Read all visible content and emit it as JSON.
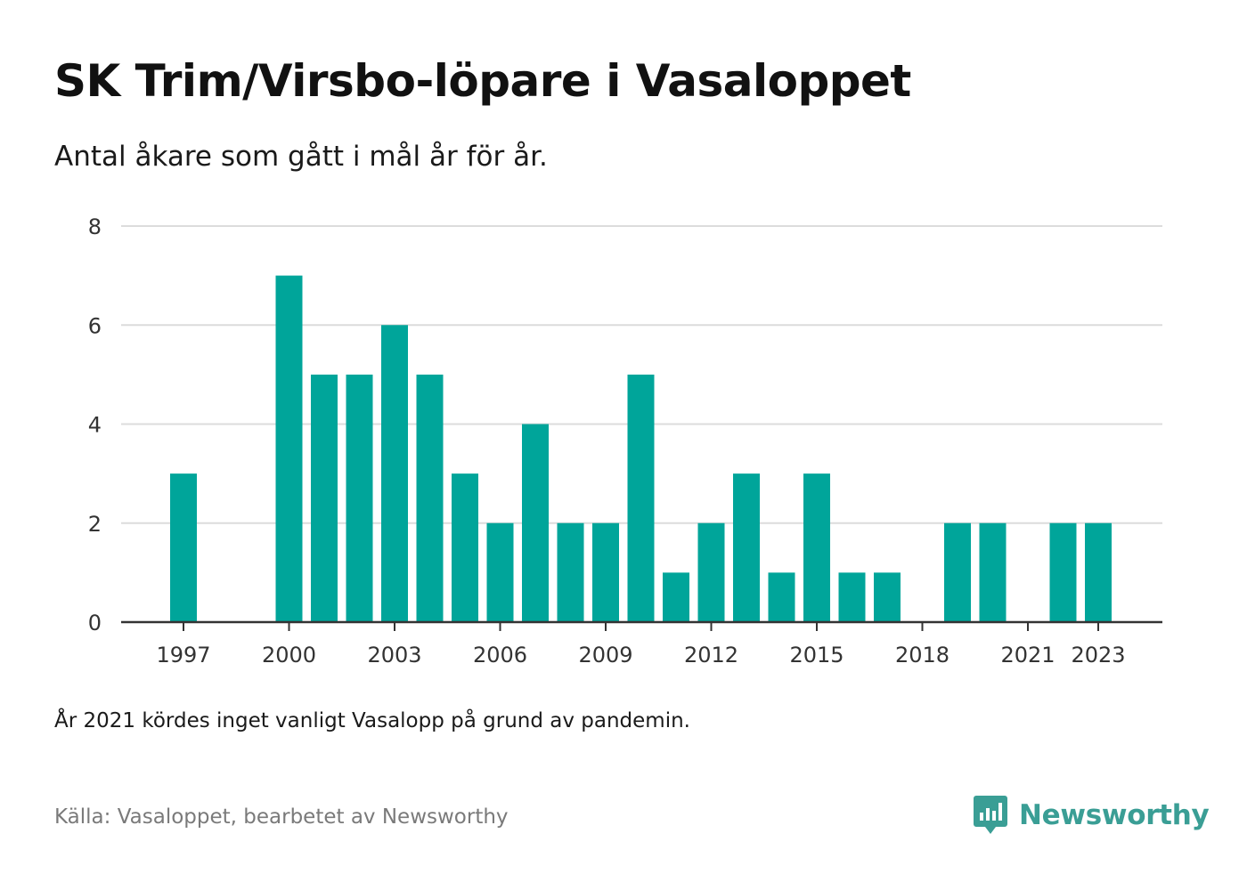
{
  "header": {
    "title": "SK Trim/Virsbo-löpare i Vasaloppet",
    "subtitle": "Antal åkare som gått i mål år för år."
  },
  "footer": {
    "note": "År 2021 kördes inget vanligt Vasalopp på grund av pandemin.",
    "source": "Källa: Vasaloppet, bearbetet av Newsworthy",
    "brand": "Newsworthy",
    "brand_icon": "newsworthy-logo-icon"
  },
  "colors": {
    "bar": "#00a59a",
    "brand": "#3a9e95",
    "grid": "#dcdcdc",
    "axis": "#333333"
  },
  "chart_data": {
    "type": "bar",
    "title": "SK Trim/Virsbo-löpare i Vasaloppet",
    "subtitle": "Antal åkare som gått i mål år för år.",
    "xlabel": "",
    "ylabel": "",
    "categories": [
      1997,
      1998,
      1999,
      2000,
      2001,
      2002,
      2003,
      2004,
      2005,
      2006,
      2007,
      2008,
      2009,
      2010,
      2011,
      2012,
      2013,
      2014,
      2015,
      2016,
      2017,
      2018,
      2019,
      2020,
      2021,
      2022,
      2023
    ],
    "values": [
      3,
      0,
      0,
      7,
      5,
      5,
      6,
      5,
      3,
      2,
      4,
      2,
      2,
      5,
      1,
      2,
      3,
      1,
      3,
      1,
      1,
      0,
      2,
      2,
      0,
      2,
      2
    ],
    "x_tick_labels": [
      "1997",
      "2000",
      "2003",
      "2006",
      "2009",
      "2012",
      "2015",
      "2018",
      "2021",
      "2023"
    ],
    "y_ticks": [
      0,
      2,
      4,
      6,
      8
    ],
    "ylim": [
      0,
      8
    ],
    "grid": true,
    "legend": "none"
  }
}
